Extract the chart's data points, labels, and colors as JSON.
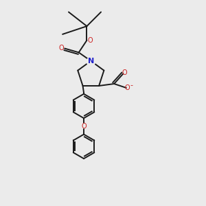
{
  "bg_color": "#ebebeb",
  "bond_color": "#1a1a1a",
  "nitrogen_color": "#2020cc",
  "oxygen_color": "#cc2020",
  "line_width": 1.4,
  "figsize": [
    3.0,
    3.0
  ],
  "dpi": 100,
  "xlim": [
    0,
    10
  ],
  "ylim": [
    0,
    10
  ]
}
